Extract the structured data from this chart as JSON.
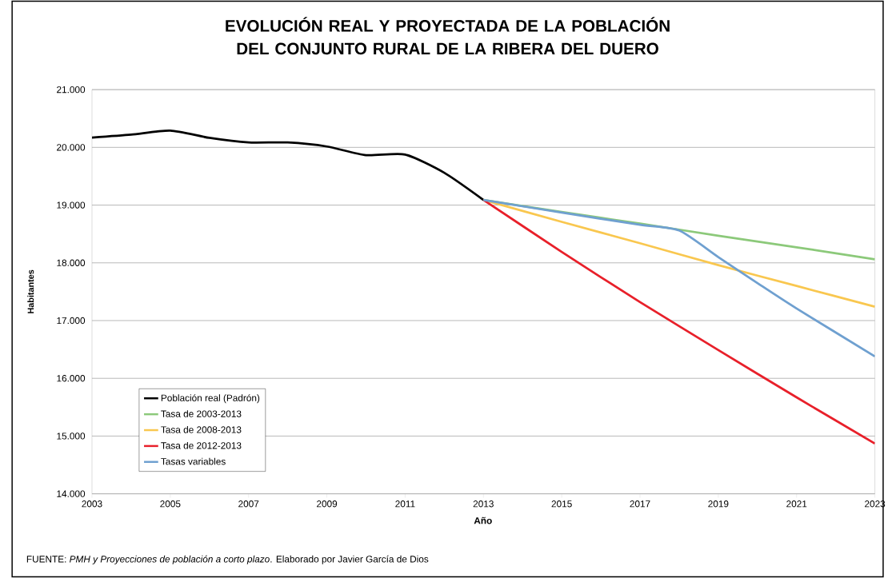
{
  "chart_data": {
    "type": "line",
    "title": "EVOLUCIÓN REAL Y PROYECTADA DE LA POBLACIÓN DEL CONJUNTO RURAL DE LA RIBERA DEL DUERO",
    "xlabel": "Año",
    "ylabel": "Habitantes",
    "series": [
      {
        "name": "Población real (Padrón)",
        "color": "#000000",
        "x": [
          2003,
          2004,
          2005,
          2006,
          2007,
          2008,
          2009,
          2010,
          2011,
          2012,
          2013
        ],
        "values": [
          20170,
          20220,
          20290,
          20165,
          20085,
          20085,
          20015,
          19865,
          19875,
          19560,
          19090
        ]
      },
      {
        "name": "Tasa de 2003-2013",
        "color": "#8cc97a",
        "x": [
          2013,
          2015,
          2017,
          2019,
          2021,
          2023
        ],
        "values": [
          19090,
          18880,
          18680,
          18470,
          18270,
          18060
        ]
      },
      {
        "name": "Tasa de 2008-2013",
        "color": "#f9c74f",
        "x": [
          2013,
          2015,
          2017,
          2019,
          2021,
          2023
        ],
        "values": [
          19090,
          18710,
          18340,
          17960,
          17600,
          17240
        ]
      },
      {
        "name": "Tasa de 2012-2013",
        "color": "#e8202a",
        "x": [
          2013,
          2015,
          2017,
          2019,
          2021,
          2023
        ],
        "values": [
          19090,
          18190,
          17320,
          16490,
          15670,
          14870
        ]
      },
      {
        "name": "Tasas variables",
        "color": "#6fa0d0",
        "x": [
          2013,
          2015,
          2017,
          2018,
          2019,
          2020,
          2021,
          2023
        ],
        "values": [
          19090,
          18870,
          18660,
          18560,
          18100,
          17650,
          17210,
          16380
        ]
      }
    ],
    "xlim": [
      2003,
      2023
    ],
    "ylim": [
      14000,
      21000
    ],
    "xticks": [
      2003,
      2005,
      2007,
      2009,
      2011,
      2013,
      2015,
      2017,
      2019,
      2021,
      2023
    ],
    "yticks": [
      {
        "value": 14000,
        "label": "14.000"
      },
      {
        "value": 15000,
        "label": "15.000"
      },
      {
        "value": 16000,
        "label": "16.000"
      },
      {
        "value": 17000,
        "label": "17.000"
      },
      {
        "value": 18000,
        "label": "18.000"
      },
      {
        "value": 19000,
        "label": "19.000"
      },
      {
        "value": 20000,
        "label": "20.000"
      },
      {
        "value": 21000,
        "label": "21.000"
      }
    ],
    "grid": "y",
    "legend": "bottom left",
    "annotations": [
      "FUENTE: *PMH y Proyecciones de población a corto plazo*. Elaborado por Javier García de Dios"
    ]
  }
}
